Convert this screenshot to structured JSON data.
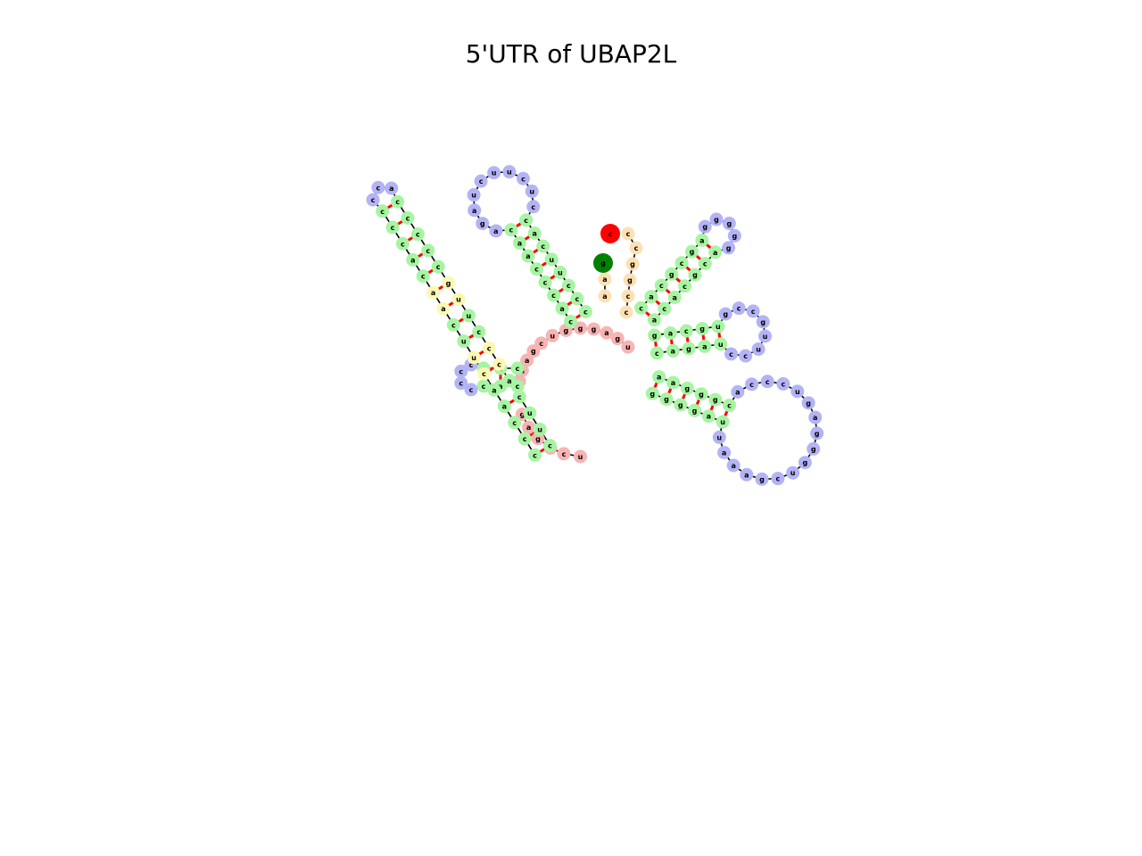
{
  "title": "5'UTR of UBAP2L",
  "colors": {
    "stem": "#a7f4a2",
    "hairpin_loop": "#b3b3f6",
    "internal_loop": "#fbf8b4",
    "multiloop": "#f8b3b3",
    "external": "#fde0b3",
    "five_prime": "#008000",
    "three_prime": "#ff0000",
    "pair_bond": "#ff0000",
    "backbone": "#000000"
  },
  "five_prime_base": "g",
  "three_prime_base": "c",
  "nucleotides": "gagucuaaagcugggagucccaccucuccaaacccucuucuagacccaccccccaccaaccggccgaagggggcgaagcaguuccuugccggagaggg",
  "legend_types": [
    "stem",
    "hairpin_loop",
    "internal_loop",
    "multiloop",
    "external"
  ]
}
